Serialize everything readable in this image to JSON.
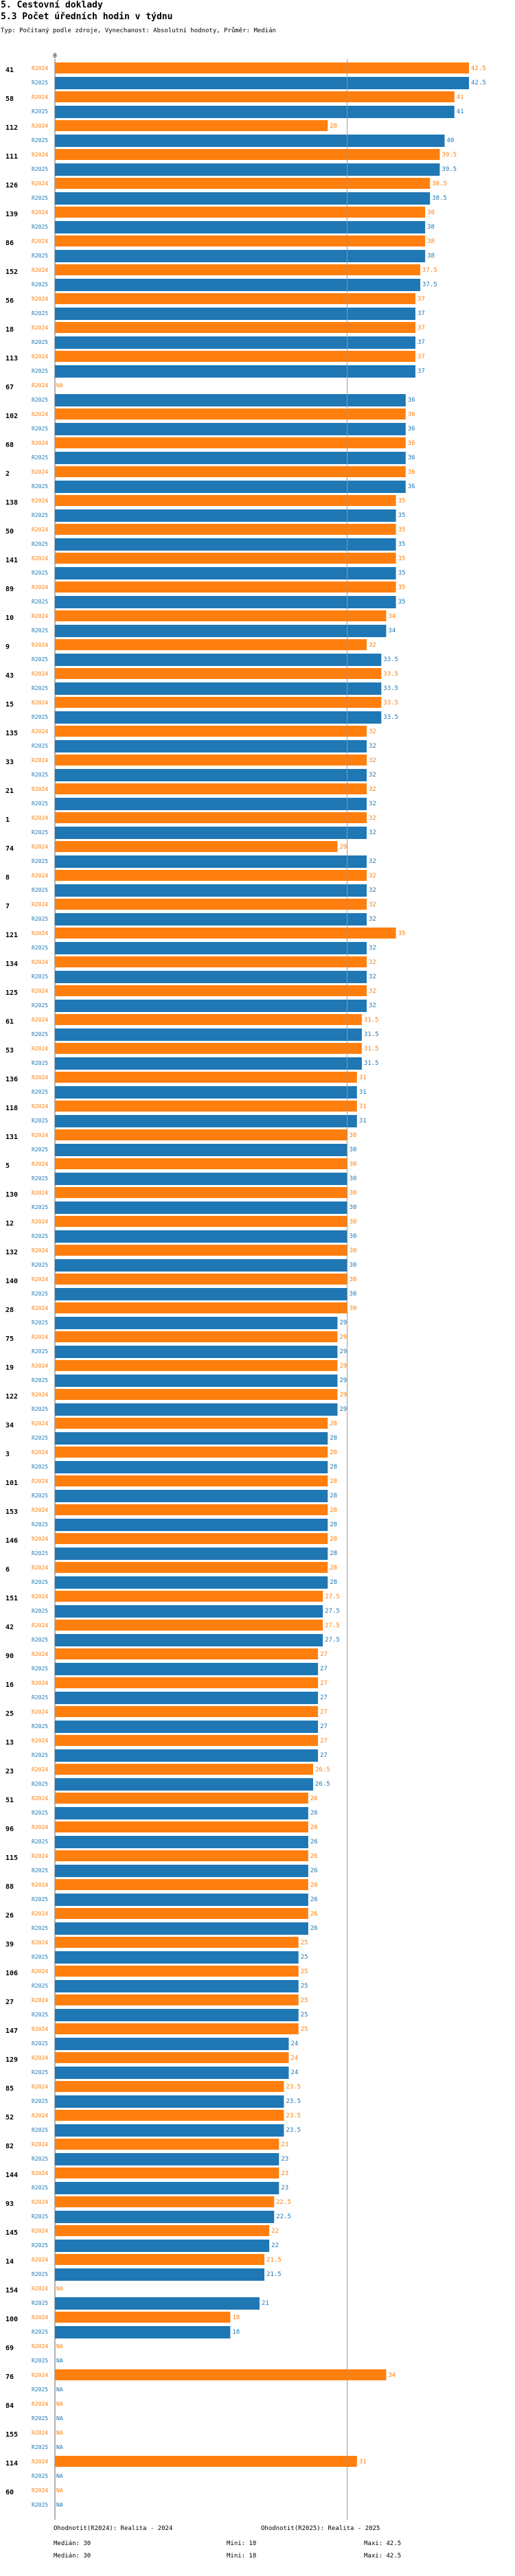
{
  "header": {
    "section": "5. Cestovní doklady",
    "title": "5.3 Počet úředních hodin v týdnu",
    "subtitle": "Typ: Počítaný podle zdroje, Vynechanost: Absolutní hodnoty, Průměr: Medián"
  },
  "colors": {
    "r2024": "#FF7F0E",
    "r2025": "#1F77B4",
    "grid": "#999999"
  },
  "chart_data": {
    "type": "bar",
    "orientation": "horizontal",
    "title": "5.3 Počet úředních hodin v týdnu",
    "xlim": [
      0,
      42.5
    ],
    "axis_tick_label": "0",
    "median_marker": 30,
    "series_labels": [
      "R2024",
      "R2025"
    ],
    "series": [
      {
        "name": "Ohodnotit(R2024): Realita - 2024",
        "stats": [
          "Medián: 30",
          "Mini: 18",
          "Maxi: 42.5"
        ]
      },
      {
        "name": "Ohodnotit(R2025): Realita - 2025",
        "stats": [
          "Medián: 30",
          "Mini: 18",
          "Maxi: 42.5"
        ]
      }
    ],
    "categories": [
      {
        "id": "41",
        "r2024": 42.5,
        "r2025": 42.5
      },
      {
        "id": "58",
        "r2024": 41,
        "r2025": 41
      },
      {
        "id": "112",
        "r2024": 28,
        "r2025": 40
      },
      {
        "id": "111",
        "r2024": 39.5,
        "r2025": 39.5
      },
      {
        "id": "126",
        "r2024": 38.5,
        "r2025": 38.5
      },
      {
        "id": "139",
        "r2024": 38,
        "r2025": 38
      },
      {
        "id": "86",
        "r2024": 38,
        "r2025": 38
      },
      {
        "id": "152",
        "r2024": 37.5,
        "r2025": 37.5
      },
      {
        "id": "56",
        "r2024": 37,
        "r2025": 37
      },
      {
        "id": "18",
        "r2024": 37,
        "r2025": 37
      },
      {
        "id": "113",
        "r2024": 37,
        "r2025": 37
      },
      {
        "id": "67",
        "r2024": null,
        "r2025": 36
      },
      {
        "id": "102",
        "r2024": 36,
        "r2025": 36
      },
      {
        "id": "68",
        "r2024": 36,
        "r2025": 36
      },
      {
        "id": "2",
        "r2024": 36,
        "r2025": 36
      },
      {
        "id": "138",
        "r2024": 35,
        "r2025": 35
      },
      {
        "id": "50",
        "r2024": 35,
        "r2025": 35
      },
      {
        "id": "141",
        "r2024": 35,
        "r2025": 35
      },
      {
        "id": "89",
        "r2024": 35,
        "r2025": 35
      },
      {
        "id": "10",
        "r2024": 34,
        "r2025": 34
      },
      {
        "id": "9",
        "r2024": 32,
        "r2025": 33.5
      },
      {
        "id": "43",
        "r2024": 33.5,
        "r2025": 33.5
      },
      {
        "id": "15",
        "r2024": 33.5,
        "r2025": 33.5
      },
      {
        "id": "135",
        "r2024": 32,
        "r2025": 32
      },
      {
        "id": "33",
        "r2024": 32,
        "r2025": 32
      },
      {
        "id": "21",
        "r2024": 32,
        "r2025": 32
      },
      {
        "id": "1",
        "r2024": 32,
        "r2025": 32
      },
      {
        "id": "74",
        "r2024": 29,
        "r2025": 32
      },
      {
        "id": "8",
        "r2024": 32,
        "r2025": 32
      },
      {
        "id": "7",
        "r2024": 32,
        "r2025": 32
      },
      {
        "id": "121",
        "r2024": 35,
        "r2025": 32
      },
      {
        "id": "134",
        "r2024": 32,
        "r2025": 32
      },
      {
        "id": "125",
        "r2024": 32,
        "r2025": 32
      },
      {
        "id": "61",
        "r2024": 31.5,
        "r2025": 31.5
      },
      {
        "id": "53",
        "r2024": 31.5,
        "r2025": 31.5
      },
      {
        "id": "136",
        "r2024": 31,
        "r2025": 31
      },
      {
        "id": "118",
        "r2024": 31,
        "r2025": 31
      },
      {
        "id": "131",
        "r2024": 30,
        "r2025": 30
      },
      {
        "id": "5",
        "r2024": 30,
        "r2025": 30
      },
      {
        "id": "130",
        "r2024": 30,
        "r2025": 30
      },
      {
        "id": "12",
        "r2024": 30,
        "r2025": 30
      },
      {
        "id": "132",
        "r2024": 30,
        "r2025": 30
      },
      {
        "id": "140",
        "r2024": 30,
        "r2025": 30
      },
      {
        "id": "28",
        "r2024": 30,
        "r2025": 29
      },
      {
        "id": "75",
        "r2024": 29,
        "r2025": 29
      },
      {
        "id": "19",
        "r2024": 29,
        "r2025": 29
      },
      {
        "id": "122",
        "r2024": 29,
        "r2025": 29
      },
      {
        "id": "34",
        "r2024": 28,
        "r2025": 28
      },
      {
        "id": "3",
        "r2024": 28,
        "r2025": 28
      },
      {
        "id": "101",
        "r2024": 28,
        "r2025": 28
      },
      {
        "id": "153",
        "r2024": 28,
        "r2025": 28
      },
      {
        "id": "146",
        "r2024": 28,
        "r2025": 28
      },
      {
        "id": "6",
        "r2024": 28,
        "r2025": 28
      },
      {
        "id": "151",
        "r2024": 27.5,
        "r2025": 27.5
      },
      {
        "id": "42",
        "r2024": 27.5,
        "r2025": 27.5
      },
      {
        "id": "90",
        "r2024": 27,
        "r2025": 27
      },
      {
        "id": "16",
        "r2024": 27,
        "r2025": 27
      },
      {
        "id": "25",
        "r2024": 27,
        "r2025": 27
      },
      {
        "id": "13",
        "r2024": 27,
        "r2025": 27
      },
      {
        "id": "23",
        "r2024": 26.5,
        "r2025": 26.5
      },
      {
        "id": "51",
        "r2024": 26,
        "r2025": 26
      },
      {
        "id": "96",
        "r2024": 26,
        "r2025": 26
      },
      {
        "id": "115",
        "r2024": 26,
        "r2025": 26
      },
      {
        "id": "88",
        "r2024": 26,
        "r2025": 26
      },
      {
        "id": "26",
        "r2024": 26,
        "r2025": 26
      },
      {
        "id": "39",
        "r2024": 25,
        "r2025": 25
      },
      {
        "id": "106",
        "r2024": 25,
        "r2025": 25
      },
      {
        "id": "27",
        "r2024": 25,
        "r2025": 25
      },
      {
        "id": "147",
        "r2024": 25,
        "r2025": 24
      },
      {
        "id": "129",
        "r2024": 24,
        "r2025": 24
      },
      {
        "id": "85",
        "r2024": 23.5,
        "r2025": 23.5
      },
      {
        "id": "52",
        "r2024": 23.5,
        "r2025": 23.5
      },
      {
        "id": "82",
        "r2024": 23,
        "r2025": 23
      },
      {
        "id": "144",
        "r2024": 23,
        "r2025": 23
      },
      {
        "id": "93",
        "r2024": 22.5,
        "r2025": 22.5
      },
      {
        "id": "145",
        "r2024": 22,
        "r2025": 22
      },
      {
        "id": "14",
        "r2024": 21.5,
        "r2025": 21.5
      },
      {
        "id": "154",
        "r2024": null,
        "r2025": 21
      },
      {
        "id": "100",
        "r2024": 18,
        "r2025": 18
      },
      {
        "id": "69",
        "r2024": null,
        "r2025": null
      },
      {
        "id": "76",
        "r2024": 34,
        "r2025": null
      },
      {
        "id": "84",
        "r2024": null,
        "r2025": null
      },
      {
        "id": "155",
        "r2024": null,
        "r2025": null
      },
      {
        "id": "114",
        "r2024": 31,
        "r2025": null
      },
      {
        "id": "60",
        "r2024": null,
        "r2025": null
      }
    ]
  }
}
